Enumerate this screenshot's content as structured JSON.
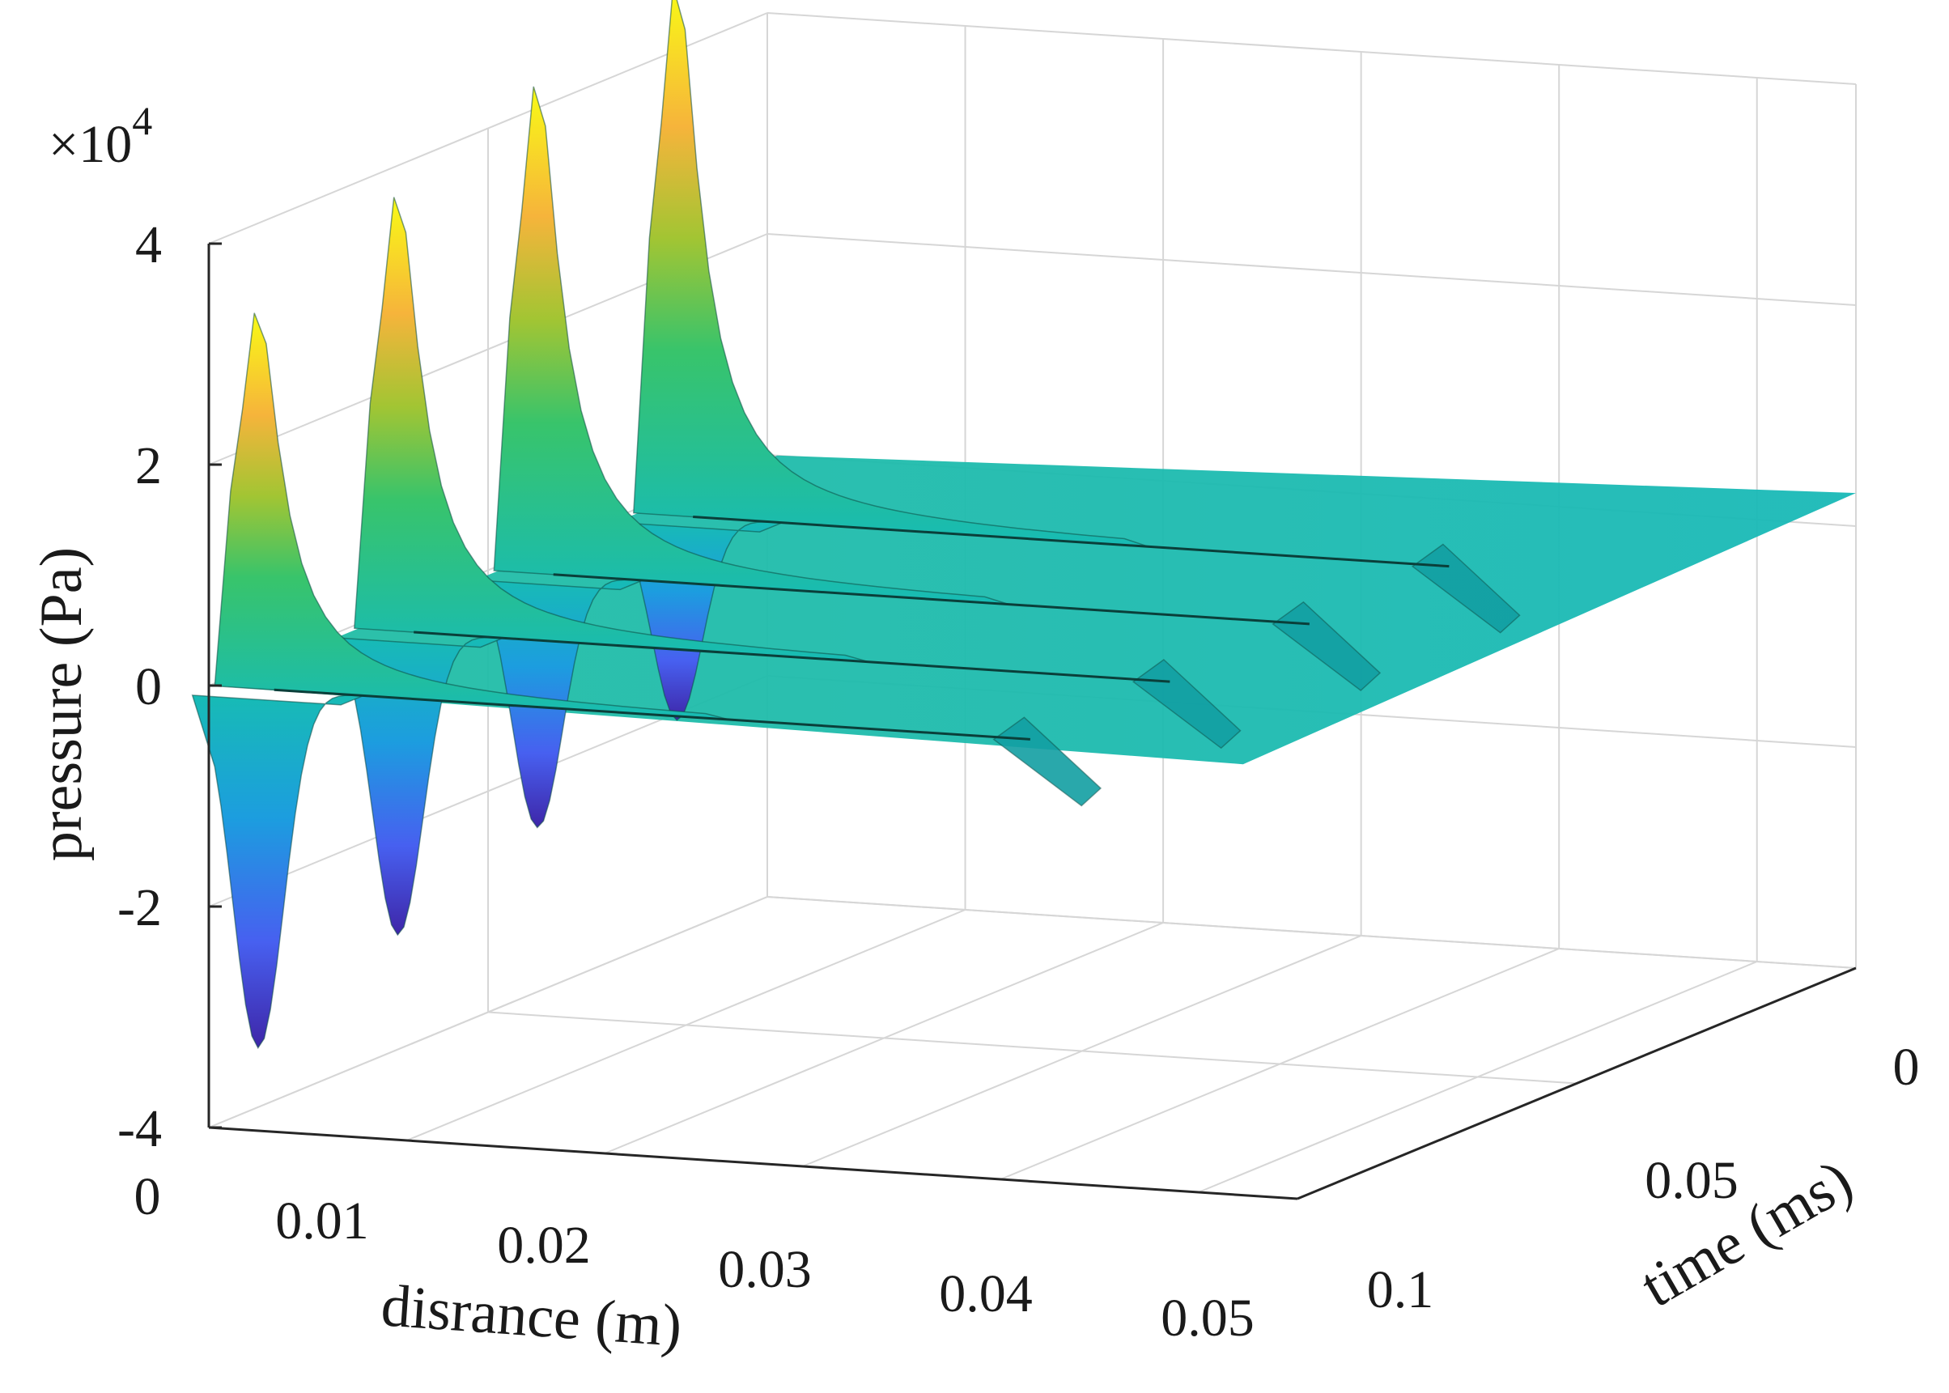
{
  "chart_data": {
    "type": "surface3d",
    "title": "",
    "xlabel": "disrance (m)",
    "ylabel": "time (ms)",
    "zlabel": "pressure (Pa)",
    "z_exponent_label": "×10",
    "z_exponent_power": "4",
    "xlim": [
      0,
      0.055
    ],
    "ylim": [
      0,
      0.1
    ],
    "zlim": [
      -4,
      4
    ],
    "x_ticks": [
      "0",
      "0.01",
      "0.02",
      "0.03",
      "0.04",
      "0.05"
    ],
    "y_ticks": [
      "0",
      "0.05",
      "0.1"
    ],
    "z_ticks": [
      "4",
      "2",
      "0",
      "-2",
      "-4"
    ],
    "colormap": [
      "#3e26a8",
      "#4760f0",
      "#1c9ddf",
      "#17bbb5",
      "#38c46b",
      "#a2c533",
      "#f6b43b",
      "#f9fb15"
    ],
    "ridges": [
      {
        "time": 0.1,
        "peak": 3.55,
        "trough": -3.25
      },
      {
        "time": 0.075,
        "peak": 4.1,
        "trough": -2.75
      },
      {
        "time": 0.05,
        "peak": 4.6,
        "trough": -2.3
      },
      {
        "time": 0.025,
        "peak": 5.0,
        "trough": -1.85
      }
    ],
    "front_distance": 0.0415,
    "plateau": 0
  }
}
